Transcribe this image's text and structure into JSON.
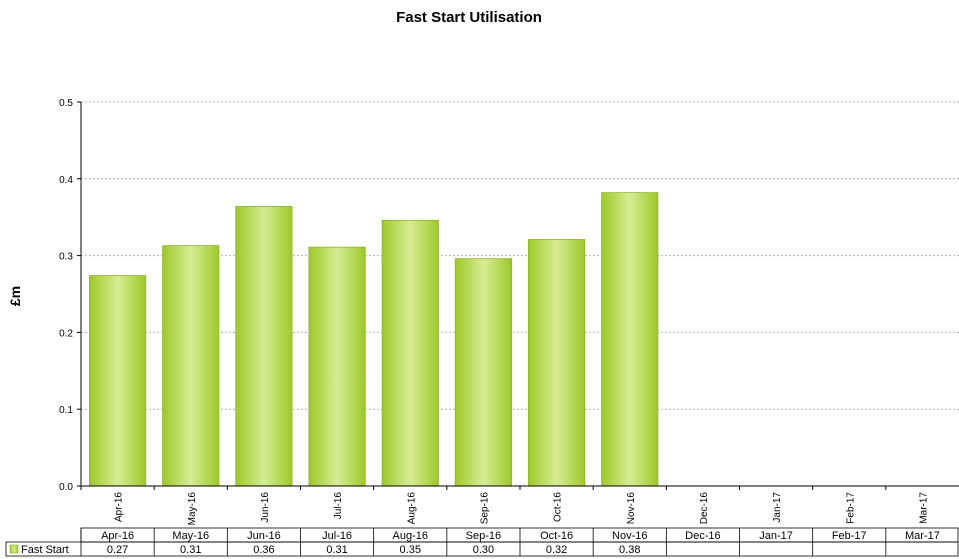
{
  "chart_data": {
    "type": "bar",
    "title": "Fast Start Utilisation",
    "ylabel": "£m",
    "xlabel": "",
    "ylim": [
      0,
      0.5
    ],
    "yticks": [
      "0.0",
      "0.1",
      "0.2",
      "0.3",
      "0.4",
      "0.5"
    ],
    "grid": true,
    "categories": [
      "Apr-16",
      "May-16",
      "Jun-16",
      "Jul-16",
      "Aug-16",
      "Sep-16",
      "Oct-16",
      "Nov-16",
      "Dec-16",
      "Jan-17",
      "Feb-17",
      "Mar-17"
    ],
    "series": [
      {
        "name": "Fast Start",
        "values": [
          0.274,
          0.313,
          0.364,
          0.311,
          0.346,
          0.296,
          0.321,
          0.382,
          null,
          null,
          null,
          null
        ],
        "table_labels": [
          "0.27",
          "0.31",
          "0.36",
          "0.31",
          "0.35",
          "0.30",
          "0.32",
          "0.38",
          "",
          "",
          "",
          ""
        ],
        "color": "#a6cf3a"
      }
    ],
    "legend": "data-table"
  }
}
